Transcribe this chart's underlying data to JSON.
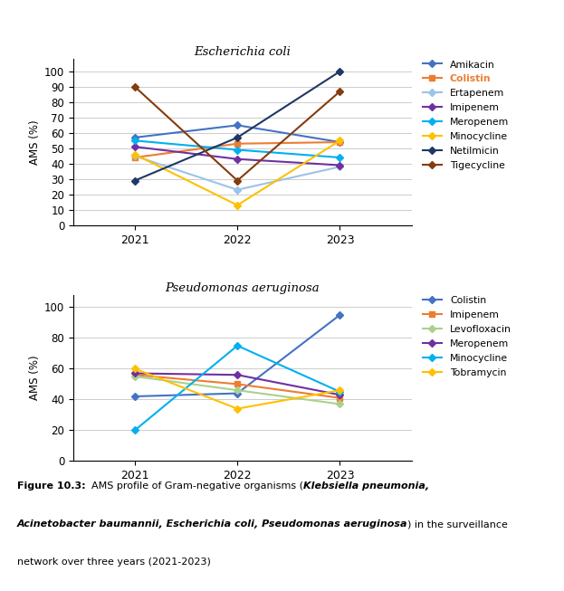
{
  "ecoli": {
    "title": "Escherichia coli",
    "years": [
      2021,
      2022,
      2023
    ],
    "series": {
      "Amikacin": {
        "values": [
          57,
          65,
          54
        ],
        "color": "#4472C4",
        "marker": "D"
      },
      "Colistin": {
        "values": [
          44,
          53,
          54
        ],
        "color": "#ED7D31",
        "marker": "s",
        "bold": true
      },
      "Ertapenem": {
        "values": [
          45,
          23,
          38
        ],
        "color": "#9DC3E6",
        "marker": "D"
      },
      "Imipenem": {
        "values": [
          51,
          43,
          39
        ],
        "color": "#7030A0",
        "marker": "D"
      },
      "Meropenem": {
        "values": [
          55,
          49,
          44
        ],
        "color": "#00B0F0",
        "marker": "D"
      },
      "Minocycline": {
        "values": [
          46,
          13,
          55
        ],
        "color": "#FFC000",
        "marker": "D"
      },
      "Netilmicin": {
        "values": [
          29,
          57,
          100
        ],
        "color": "#1F3864",
        "marker": "D"
      },
      "Tigecycline": {
        "values": [
          90,
          29,
          87
        ],
        "color": "#843C0C",
        "marker": "D"
      }
    },
    "ylim": [
      0,
      108
    ],
    "yticks": [
      0,
      10,
      20,
      30,
      40,
      50,
      60,
      70,
      80,
      90,
      100
    ],
    "ylabel": "AMS (%)"
  },
  "pseudomonas": {
    "title": "Pseudomonas aeruginosa",
    "years": [
      2021,
      2022,
      2023
    ],
    "series": {
      "Colistin": {
        "values": [
          42,
          44,
          95
        ],
        "color": "#4472C4",
        "marker": "D"
      },
      "Imipenem": {
        "values": [
          56,
          50,
          41
        ],
        "color": "#ED7D31",
        "marker": "s"
      },
      "Levofloxacin": {
        "values": [
          55,
          46,
          37
        ],
        "color": "#A9D18E",
        "marker": "D"
      },
      "Meropenem": {
        "values": [
          57,
          56,
          43
        ],
        "color": "#7030A0",
        "marker": "D"
      },
      "Minocycline": {
        "values": [
          20,
          75,
          45
        ],
        "color": "#00B0F0",
        "marker": "D"
      },
      "Tobramycin": {
        "values": [
          60,
          34,
          46
        ],
        "color": "#FFC000",
        "marker": "D"
      }
    },
    "ylim": [
      0,
      108
    ],
    "yticks": [
      0,
      20,
      40,
      60,
      80,
      100
    ],
    "ylabel": "AMS (%)"
  },
  "caption_bold": "Figure 10.3: ",
  "caption_normal": "AMS profile of Gram-negative organisms (",
  "caption_italic": "Klebsiella pneumonia, Acinetobacter baumannii, Escherichia coli, Pseudomonas aeruginosa",
  "caption_end": ") in the surveillance network over three years (2021-2023)"
}
